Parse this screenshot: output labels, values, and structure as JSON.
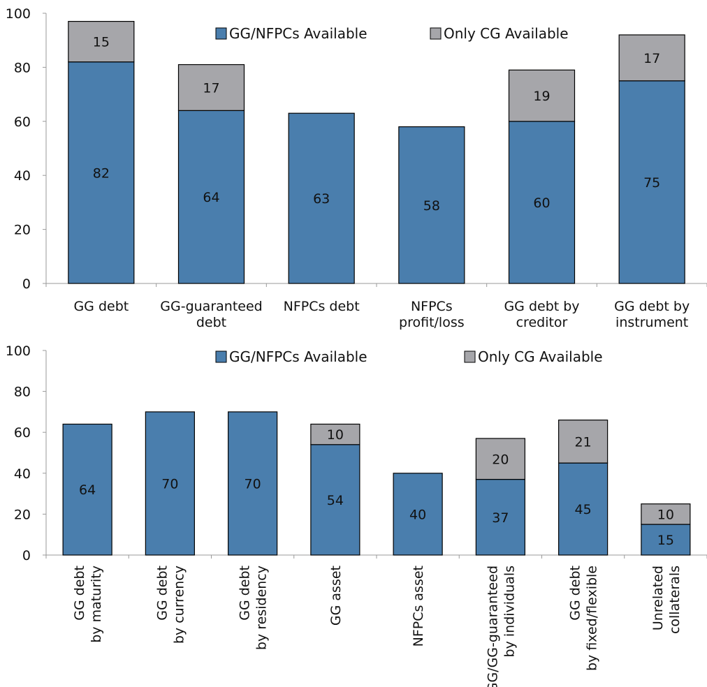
{
  "colors": {
    "available": "#4a7ead",
    "only_cg": "#a6a6aa",
    "axis": "#999999",
    "border": "#000000"
  },
  "chart_data": [
    {
      "type": "bar",
      "stacked": true,
      "categories": [
        [
          "GG debt"
        ],
        [
          "GG-guaranteed",
          "debt"
        ],
        [
          "NFPCs debt"
        ],
        [
          "NFPCs",
          "profit/loss"
        ],
        [
          "GG debt by",
          "creditor"
        ],
        [
          "GG debt by",
          "instrument"
        ]
      ],
      "series": [
        {
          "name": "GG/NFPCs Available",
          "values": [
            82,
            64,
            63,
            58,
            60,
            75
          ]
        },
        {
          "name": "Only CG Available",
          "values": [
            15,
            17,
            null,
            null,
            19,
            17
          ]
        }
      ],
      "ylim": [
        0,
        100
      ],
      "yticks": [
        0,
        20,
        40,
        60,
        80,
        100
      ],
      "legend": "top",
      "grid": false
    },
    {
      "type": "bar",
      "stacked": true,
      "categories": [
        [
          "GG debt",
          "by maturity"
        ],
        [
          "GG debt",
          "by currency"
        ],
        [
          "GG debt",
          "by residency"
        ],
        [
          "GG asset"
        ],
        [
          "NFPCs asset"
        ],
        [
          "GG/GG-guaranteed",
          "by individuals"
        ],
        [
          "GG debt",
          "by fixed/flexible"
        ],
        [
          "Unrelated",
          "collaterals"
        ]
      ],
      "series": [
        {
          "name": "GG/NFPCs Available",
          "values": [
            64,
            70,
            70,
            54,
            40,
            37,
            45,
            15
          ]
        },
        {
          "name": "Only CG Available",
          "values": [
            null,
            null,
            null,
            10,
            null,
            20,
            21,
            10
          ]
        }
      ],
      "ylim": [
        0,
        100
      ],
      "yticks": [
        0,
        20,
        40,
        60,
        80,
        100
      ],
      "legend": "top",
      "grid": false
    }
  ]
}
